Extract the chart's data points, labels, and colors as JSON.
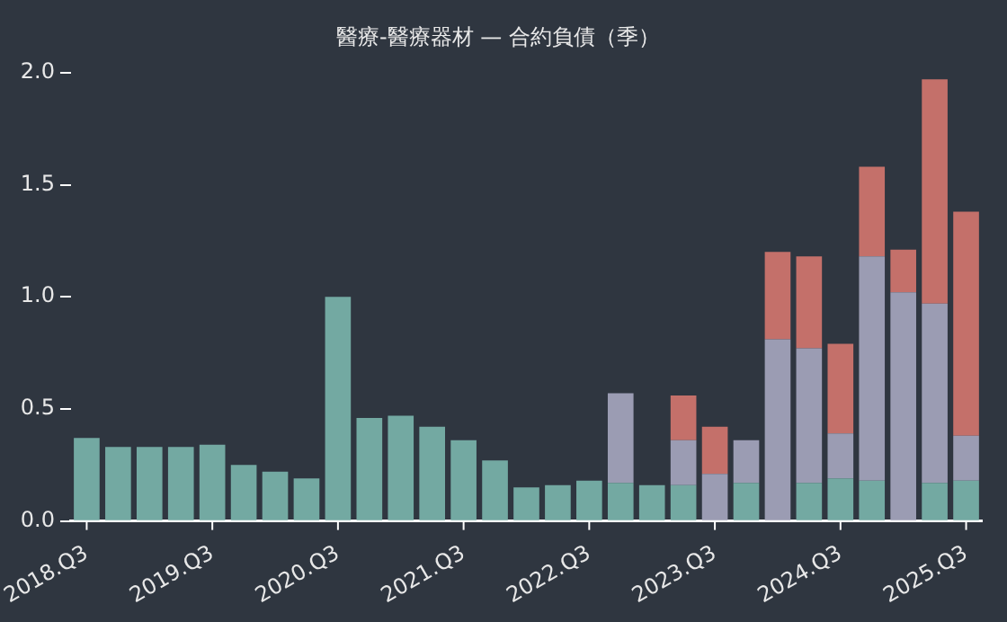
{
  "chart_data": {
    "type": "bar",
    "title": "醫療-醫療器材 — 合約負債（季）",
    "stacked": true,
    "categories": [
      "2018.Q3",
      null,
      null,
      null,
      "2019.Q3",
      null,
      null,
      null,
      "2020.Q3",
      null,
      null,
      null,
      "2021.Q3",
      null,
      null,
      null,
      "2022.Q3",
      null,
      null,
      null,
      "2023.Q3",
      null,
      null,
      null,
      "2024.Q3",
      null,
      null,
      null,
      "2025.Q3"
    ],
    "series": [
      {
        "color": "#73a9a2",
        "values": [
          0.37,
          0.33,
          0.33,
          0.33,
          0.34,
          0.25,
          0.22,
          0.19,
          1.0,
          0.46,
          0.47,
          0.42,
          0.36,
          0.27,
          0.15,
          0.16,
          0.18,
          0.17,
          0.16,
          0.16,
          null,
          0.17,
          null,
          0.17,
          0.19,
          0.18,
          null,
          0.17,
          0.18
        ]
      },
      {
        "color": "#9b9cb3",
        "values": [
          null,
          null,
          null,
          null,
          null,
          null,
          null,
          null,
          null,
          null,
          null,
          null,
          null,
          null,
          null,
          null,
          null,
          0.4,
          null,
          0.2,
          0.21,
          0.19,
          0.81,
          0.6,
          0.2,
          1.0,
          1.02,
          0.8,
          0.2
        ]
      },
      {
        "color": "#c4706a",
        "values": [
          null,
          null,
          null,
          null,
          null,
          null,
          null,
          null,
          null,
          null,
          null,
          null,
          null,
          null,
          null,
          null,
          null,
          null,
          null,
          0.2,
          0.21,
          null,
          0.39,
          0.41,
          0.4,
          0.4,
          0.19,
          1.0,
          1.0
        ]
      }
    ],
    "ylim": [
      0,
      2
    ],
    "yticks": [
      {
        "value": 0,
        "label": "0.0"
      },
      {
        "value": 0.5,
        "label": "0.5"
      },
      {
        "value": 1,
        "label": "1.0"
      },
      {
        "value": 1.5,
        "label": "1.5"
      },
      {
        "value": 2,
        "label": "2.0"
      }
    ],
    "grid": false,
    "legend": false
  }
}
